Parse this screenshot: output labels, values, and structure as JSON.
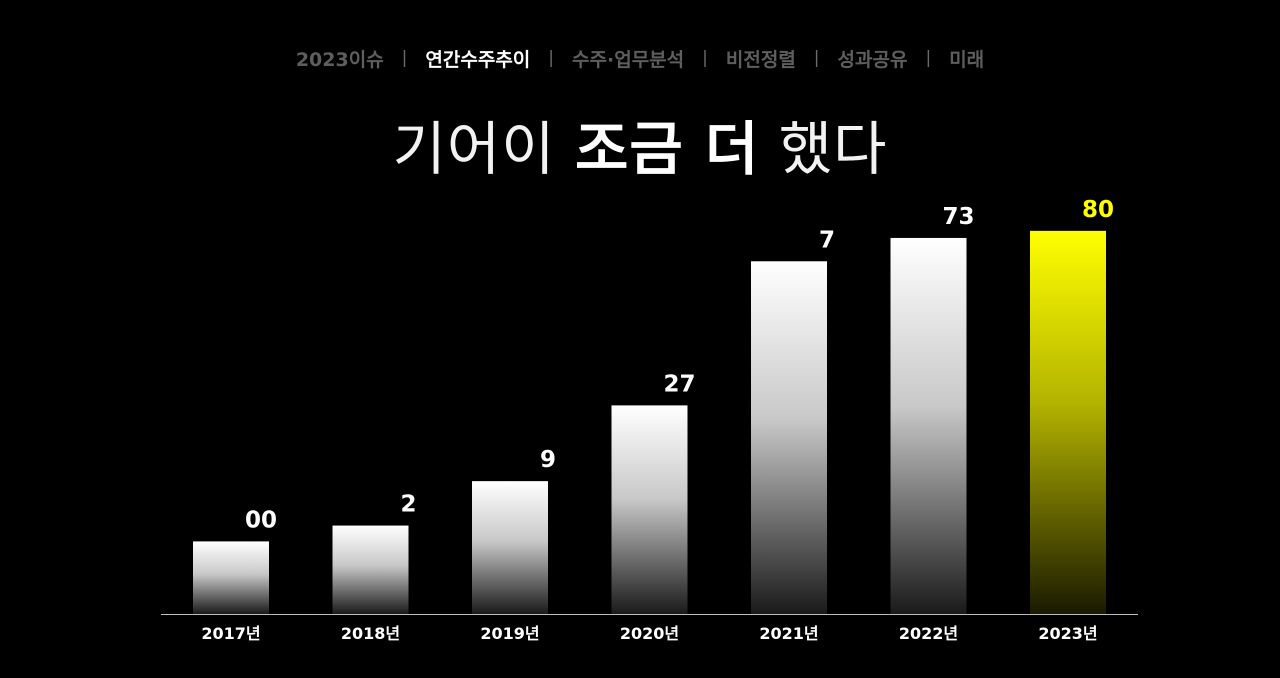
{
  "nav": {
    "items": [
      {
        "label": "2023이슈",
        "active": false
      },
      {
        "label": "연간수주추이",
        "active": true
      },
      {
        "label": "수주·업무분석",
        "active": false
      },
      {
        "label": "비전정렬",
        "active": false
      },
      {
        "label": "성과공유",
        "active": false
      },
      {
        "label": "미래",
        "active": false
      }
    ],
    "separator": "|"
  },
  "headline": {
    "part1": "기어이 ",
    "part2": "조금 더",
    "part3": " 했다"
  },
  "chart_data": {
    "type": "bar",
    "title": "기어이 조금 더 했다",
    "categories": [
      "2017년",
      "2018년",
      "2019년",
      "2020년",
      "2021년",
      "2022년",
      "2023년"
    ],
    "values": [
      98000,
      119392,
      179369,
      281627,
      476187,
      507673,
      517280
    ],
    "visible_label_suffix": [
      "00",
      "2",
      "9",
      "27",
      "7",
      "73",
      "80"
    ],
    "highlight_index": 6,
    "ylim": [
      0,
      540000
    ],
    "grid": false,
    "legend": "none",
    "colors": {
      "bar": "#ffffff",
      "highlight": "#ffff00",
      "label": "#ffffff",
      "highlight_label": "#ffff00",
      "axis": "#bfbfbf"
    }
  }
}
